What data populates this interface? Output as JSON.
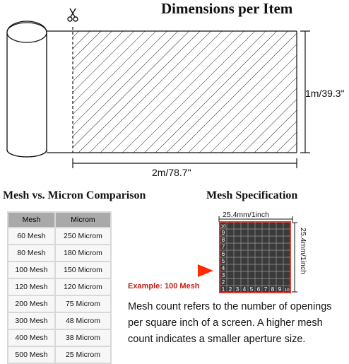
{
  "header": {
    "title": "Dimensions per Item"
  },
  "dimensions": {
    "length": "2m/78.7\"",
    "width": "1m/39.3\""
  },
  "comparison": {
    "title": "Mesh vs. Micron Comparison",
    "headers": [
      "Mesh",
      "Microm"
    ],
    "rows": [
      [
        "60 Mesh",
        "250 Microm"
      ],
      [
        "80 Mesh",
        "180 Microm"
      ],
      [
        "100 Mesh",
        "150 Microm"
      ],
      [
        "120 Mesh",
        "120 Microm"
      ],
      [
        "200 Mesh",
        "75 Microm"
      ],
      [
        "300 Mesh",
        "48 Microm"
      ],
      [
        "400 Mesh",
        "38 Microm"
      ],
      [
        "500 Mesh",
        "25 Microm"
      ]
    ]
  },
  "spec": {
    "title": "Mesh Specification",
    "width_label": "25.4mm/1inch",
    "height_label": "25.4mm/1inch",
    "example": "Example: 100 Mesh",
    "grid_numbers": [
      "1",
      "2",
      "3",
      "4",
      "5",
      "6",
      "7",
      "8",
      "9",
      "10"
    ],
    "description": "Mesh count refers to the number of openings per square inch of a screen. A higher mesh count indicates a smaller aperture size.",
    "colors": {
      "grid_border": "#d83a2e",
      "grid_bg": "#3a3a3a",
      "arrow": "#ff2a00"
    }
  }
}
